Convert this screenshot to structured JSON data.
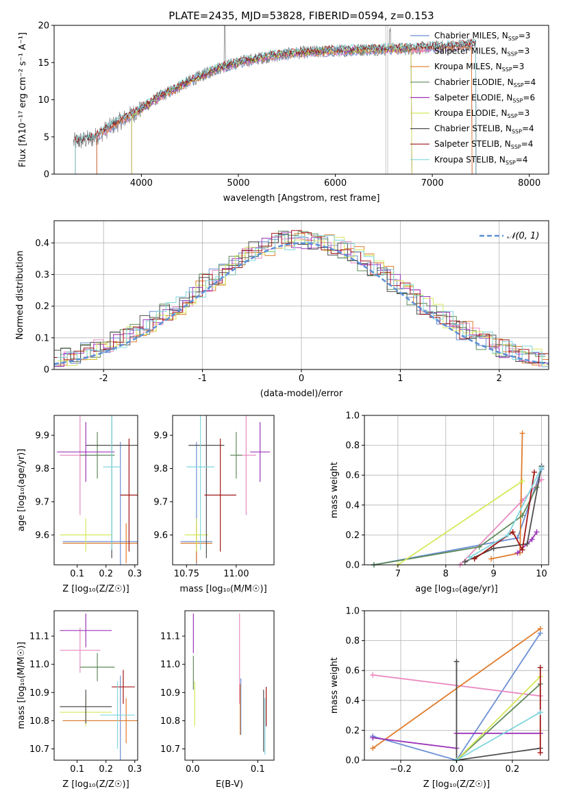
{
  "colors": {
    "Chabrier MILES": "#6b8fd6",
    "Salpeter MILES": "#e98bc2",
    "Kroupa MILES": "#e07b2a",
    "Chabrier ELODIE": "#5e8a5a",
    "Salpeter ELODIE": "#9b35b8",
    "Kroupa ELODIE": "#d6e85a",
    "Chabrier STELIB": "#4d4d4d",
    "Salpeter STELIB": "#a01515",
    "Kroupa STELIB": "#7fd6dc",
    "data": "#808080",
    "gaussian": "#5b8fd6"
  },
  "chart_data": [
    {
      "id": "spectrum",
      "type": "line",
      "title": "PLATE=2435, MJD=53828, FIBERID=0594, z=0.153",
      "xlabel": "wavelength [Angstrom, rest frame]",
      "ylabel": "Flux [fλ10⁻¹⁷ erg cm⁻² s⁻¹ A⁻¹]",
      "xlim": [
        3100,
        8200
      ],
      "ylim": [
        0,
        20
      ],
      "xticks": [
        4000,
        5000,
        6000,
        7000,
        8000
      ],
      "yticks": [
        0,
        5,
        10,
        15,
        20
      ],
      "legend": [
        {
          "name": "Chabrier MILES",
          "sub": "3"
        },
        {
          "name": "Salpeter MILES",
          "sub": "3"
        },
        {
          "name": "Kroupa MILES",
          "sub": "3"
        },
        {
          "name": "Chabrier ELODIE",
          "sub": "4"
        },
        {
          "name": "Salpeter ELODIE",
          "sub": "6"
        },
        {
          "name": "Kroupa ELODIE",
          "sub": "3"
        },
        {
          "name": "Chabrier STELIB",
          "sub": "4"
        },
        {
          "name": "Salpeter STELIB",
          "sub": "4"
        },
        {
          "name": "Kroupa STELIB",
          "sub": "4"
        }
      ],
      "legend_label_prefix": "N",
      "legend_label_subscript": "SSP",
      "continuum": [
        [
          3300,
          4.3
        ],
        [
          3500,
          4.8
        ],
        [
          3700,
          6.5
        ],
        [
          3900,
          8.0
        ],
        [
          4000,
          8.8
        ],
        [
          4200,
          10.5
        ],
        [
          4500,
          12.5
        ],
        [
          4800,
          14.3
        ],
        [
          5000,
          15.0
        ],
        [
          5300,
          15.8
        ],
        [
          5600,
          16.3
        ],
        [
          6000,
          16.6
        ],
        [
          6400,
          16.8
        ],
        [
          6800,
          16.9
        ],
        [
          7200,
          17.2
        ],
        [
          7450,
          17.5
        ]
      ],
      "model_ranges": [
        {
          "name": "Chabrier MILES",
          "x": [
            3540,
            7410
          ]
        },
        {
          "name": "Salpeter MILES",
          "x": [
            3540,
            7410
          ]
        },
        {
          "name": "Kroupa MILES",
          "x": [
            3540,
            7410
          ]
        },
        {
          "name": "Chabrier ELODIE",
          "x": [
            3900,
            6790
          ]
        },
        {
          "name": "Salpeter ELODIE",
          "x": [
            3900,
            6790
          ]
        },
        {
          "name": "Kroupa ELODIE",
          "x": [
            3900,
            6790
          ]
        },
        {
          "name": "Chabrier STELIB",
          "x": [
            3320,
            8000
          ]
        },
        {
          "name": "Salpeter STELIB",
          "x": [
            3320,
            8000
          ]
        },
        {
          "name": "Kroupa STELIB",
          "x": [
            3320,
            8000
          ]
        }
      ]
    },
    {
      "id": "residuals",
      "type": "histogram",
      "xlabel": "(data-model)/error",
      "ylabel": "Normed distribution",
      "xlim": [
        -2.5,
        2.5
      ],
      "ylim": [
        0,
        0.47
      ],
      "xticks": [
        -2,
        -1,
        0,
        1,
        2
      ],
      "yticks": [
        0.0,
        0.1,
        0.2,
        0.3,
        0.4
      ],
      "bin_width": 0.1,
      "legend": "𝒩(0, 1)",
      "grid": true
    },
    {
      "id": "age_vs_Z",
      "type": "scatter_errorbar",
      "xlabel": "Z [log₁₀(Z/Z☉)]",
      "ylabel": "age  [log₁₀(age/yr)]",
      "xlim": [
        0.02,
        0.31
      ],
      "ylim": [
        9.51,
        9.96
      ],
      "xticks": [
        "0.1",
        "0.2",
        "0.3"
      ],
      "yticks": [
        "9.6",
        "9.7",
        "9.8",
        "9.9"
      ],
      "points": [
        {
          "name": "Chabrier MILES",
          "x": 0.25,
          "y": 9.58,
          "xerr": 0.2,
          "yerr": 0.3
        },
        {
          "name": "Salpeter MILES",
          "x": 0.11,
          "y": 9.84,
          "xerr": 0.07,
          "yerr": 0.18
        },
        {
          "name": "Kroupa MILES",
          "x": 0.27,
          "y": 9.575,
          "xerr": 0.22,
          "yerr": 0.06
        },
        {
          "name": "Chabrier ELODIE",
          "x": 0.17,
          "y": 9.84,
          "xerr": 0.06,
          "yerr": 0.07
        },
        {
          "name": "Salpeter ELODIE",
          "x": 0.13,
          "y": 9.85,
          "xerr": 0.1,
          "yerr": 0.09
        },
        {
          "name": "Kroupa ELODIE",
          "x": 0.13,
          "y": 9.6,
          "xerr": 0.09,
          "yerr": 0.05
        },
        {
          "name": "Chabrier STELIB",
          "x": 0.22,
          "y": 9.87,
          "xerr": 0.09,
          "yerr": 0.34
        },
        {
          "name": "Salpeter STELIB",
          "x": 0.28,
          "y": 9.72,
          "xerr": 0.03,
          "yerr": 0.17
        },
        {
          "name": "Kroupa STELIB",
          "x": 0.22,
          "y": 9.805,
          "xerr": 0.03,
          "yerr": 0.25
        }
      ]
    },
    {
      "id": "age_vs_mass",
      "type": "scatter_errorbar",
      "xlabel": "mass [log₁₀(M/M☉)]",
      "xlim": [
        10.68,
        11.19
      ],
      "ylim": [
        9.51,
        9.96
      ],
      "xticks": [
        "10.75",
        "11.00"
      ],
      "yticks": [
        "9.6",
        "9.7",
        "9.8",
        "9.9"
      ],
      "points": [
        {
          "name": "Chabrier MILES",
          "x": 10.8,
          "y": 9.58,
          "xerr": 0.08,
          "yerr": 0.3
        },
        {
          "name": "Salpeter MILES",
          "x": 11.05,
          "y": 9.84,
          "xerr": 0.05,
          "yerr": 0.18
        },
        {
          "name": "Kroupa MILES",
          "x": 10.8,
          "y": 9.575,
          "xerr": 0.08,
          "yerr": 0.06
        },
        {
          "name": "Chabrier ELODIE",
          "x": 11.0,
          "y": 9.84,
          "xerr": 0.03,
          "yerr": 0.07
        },
        {
          "name": "Salpeter ELODIE",
          "x": 11.12,
          "y": 9.85,
          "xerr": 0.05,
          "yerr": 0.09
        },
        {
          "name": "Kroupa ELODIE",
          "x": 10.8,
          "y": 9.6,
          "xerr": 0.06,
          "yerr": 0.05
        },
        {
          "name": "Chabrier STELIB",
          "x": 10.85,
          "y": 9.87,
          "xerr": 0.09,
          "yerr": 0.34
        },
        {
          "name": "Salpeter STELIB",
          "x": 10.92,
          "y": 9.72,
          "xerr": 0.08,
          "yerr": 0.17
        },
        {
          "name": "Kroupa STELIB",
          "x": 10.82,
          "y": 9.805,
          "xerr": 0.07,
          "yerr": 0.25
        }
      ]
    },
    {
      "id": "massweight_vs_age",
      "type": "line",
      "xlabel": "age  [log₁₀(age/yr)]",
      "ylabel": "mass weight",
      "xlim": [
        6.3,
        10.15
      ],
      "ylim": [
        0,
        1
      ],
      "xticks": [
        "7",
        "8",
        "9",
        "10"
      ],
      "yticks": [
        "0.0",
        "0.2",
        "0.4",
        "0.6",
        "0.8",
        "1.0"
      ],
      "grid": true,
      "series": [
        {
          "name": "Chabrier MILES",
          "points": [
            [
              6.5,
              0
            ],
            [
              9.5,
              0.18
            ],
            [
              10,
              0.64
            ]
          ]
        },
        {
          "name": "Salpeter MILES",
          "points": [
            [
              8.3,
              0
            ],
            [
              9.6,
              0.43
            ],
            [
              10,
              0.57
            ]
          ]
        },
        {
          "name": "Kroupa MILES",
          "points": [
            [
              8.95,
              0.04
            ],
            [
              9.55,
              0.08
            ],
            [
              9.6,
              0.88
            ]
          ]
        },
        {
          "name": "Chabrier ELODIE",
          "points": [
            [
              6.5,
              0
            ],
            [
              8.7,
              0.12
            ],
            [
              9.6,
              0.33
            ],
            [
              9.9,
              0.52
            ]
          ]
        },
        {
          "name": "Salpeter ELODIE",
          "points": [
            [
              9.5,
              0.08
            ],
            [
              9.8,
              0.17
            ],
            [
              9.9,
              0.22
            ]
          ]
        },
        {
          "name": "Kroupa ELODIE",
          "points": [
            [
              7.0,
              0
            ],
            [
              9.6,
              0.56
            ]
          ]
        },
        {
          "name": "Chabrier STELIB",
          "points": [
            [
              8.4,
              0.02
            ],
            [
              9.0,
              0.11
            ],
            [
              9.7,
              0.14
            ],
            [
              10,
              0.66
            ]
          ]
        },
        {
          "name": "Salpeter STELIB",
          "points": [
            [
              8.6,
              0.04
            ],
            [
              9.4,
              0.22
            ],
            [
              9.6,
              0.1
            ],
            [
              9.85,
              0.62
            ]
          ]
        },
        {
          "name": "Kroupa STELIB",
          "points": [
            [
              8.5,
              0.05
            ],
            [
              9.3,
              0.2
            ],
            [
              10,
              0.65
            ]
          ]
        }
      ]
    },
    {
      "id": "mass_vs_Z",
      "type": "scatter_errorbar",
      "xlabel": "Z [log₁₀(Z/Z☉)]",
      "ylabel": "mass [log₁₀(M/M☉)]",
      "xlim": [
        0.02,
        0.31
      ],
      "ylim": [
        10.66,
        11.19
      ],
      "xticks": [
        "0.1",
        "0.2",
        "0.3"
      ],
      "yticks": [
        "10.7",
        "10.8",
        "10.9",
        "11.0",
        "11.1"
      ],
      "points": [
        {
          "name": "Chabrier MILES",
          "x": 0.25,
          "y": 10.8,
          "xerr": 0.2,
          "yerr": 0.16
        },
        {
          "name": "Salpeter MILES",
          "x": 0.11,
          "y": 11.05,
          "xerr": 0.07,
          "yerr": 0.08
        },
        {
          "name": "Kroupa MILES",
          "x": 0.27,
          "y": 10.8,
          "xerr": 0.22,
          "yerr": 0.08
        },
        {
          "name": "Chabrier ELODIE",
          "x": 0.17,
          "y": 10.99,
          "xerr": 0.06,
          "yerr": 0.05
        },
        {
          "name": "Salpeter ELODIE",
          "x": 0.13,
          "y": 11.12,
          "xerr": 0.09,
          "yerr": 0.06
        },
        {
          "name": "Kroupa ELODIE",
          "x": 0.13,
          "y": 10.83,
          "xerr": 0.09,
          "yerr": 0.05
        },
        {
          "name": "Chabrier STELIB",
          "x": 0.13,
          "y": 10.85,
          "xerr": 0.09,
          "yerr": 0.06
        },
        {
          "name": "Salpeter STELIB",
          "x": 0.26,
          "y": 10.92,
          "xerr": 0.04,
          "yerr": 0.06
        },
        {
          "name": "Kroupa STELIB",
          "x": 0.24,
          "y": 10.82,
          "xerr": 0.06,
          "yerr": 0.12
        }
      ]
    },
    {
      "id": "mass_vs_ebv",
      "type": "scatter_errorbar",
      "xlabel": "E(B-V)",
      "xlim": [
        -0.012,
        0.125
      ],
      "ylim": [
        10.66,
        11.19
      ],
      "xticks": [
        "0.0",
        "0.1"
      ],
      "yticks": [
        "10.7",
        "10.8",
        "10.9",
        "11.0",
        "11.1"
      ],
      "points": [
        {
          "name": "Chabrier MILES",
          "x": 0.074,
          "y": 10.85,
          "yerr": 0.1
        },
        {
          "name": "Salpeter MILES",
          "x": 0.072,
          "y": 11.02,
          "yerr": 0.16
        },
        {
          "name": "Kroupa MILES",
          "x": 0.073,
          "y": 10.84,
          "yerr": 0.09
        },
        {
          "name": "Chabrier ELODIE",
          "x": 0.001,
          "y": 10.97,
          "yerr": 0.06
        },
        {
          "name": "Salpeter ELODIE",
          "x": 0.001,
          "y": 11.11,
          "yerr": 0.07
        },
        {
          "name": "Kroupa ELODIE",
          "x": 0.003,
          "y": 10.86,
          "yerr": 0.08
        },
        {
          "name": "Chabrier STELIB",
          "x": 0.109,
          "y": 10.8,
          "yerr": 0.11
        },
        {
          "name": "Salpeter STELIB",
          "x": 0.113,
          "y": 10.85,
          "yerr": 0.07
        },
        {
          "name": "Kroupa STELIB",
          "x": 0.111,
          "y": 10.78,
          "yerr": 0.1
        }
      ]
    },
    {
      "id": "massweight_vs_Z",
      "type": "line",
      "xlabel": "Z [log₁₀(Z/Z☉)]",
      "ylabel": "mass weight",
      "xlim": [
        -0.33,
        0.33
      ],
      "ylim": [
        0,
        1
      ],
      "xticks": [
        "−0.2",
        "0.0",
        "0.2"
      ],
      "yticks": [
        "0.0",
        "0.2",
        "0.4",
        "0.6",
        "0.8",
        "1.0"
      ],
      "grid": true,
      "series": [
        {
          "name": "Chabrier MILES",
          "points": [
            [
              -0.3,
              0.16
            ],
            [
              0,
              0
            ],
            [
              0.3,
              0.85
            ]
          ]
        },
        {
          "name": "Salpeter MILES",
          "points": [
            [
              -0.3,
              0.57
            ],
            [
              0.3,
              0.43
            ]
          ]
        },
        {
          "name": "Kroupa MILES",
          "points": [
            [
              -0.3,
              0.08
            ],
            [
              0.3,
              0.88
            ]
          ]
        },
        {
          "name": "Chabrier ELODIE",
          "points": [
            [
              0,
              0
            ],
            [
              0.3,
              0.51
            ]
          ]
        },
        {
          "name": "Salpeter ELODIE",
          "points": [
            [
              -0.3,
              0.15
            ],
            [
              0,
              0.08
            ],
            [
              0,
              0.18
            ],
            [
              0.3,
              0.18
            ]
          ]
        },
        {
          "name": "Kroupa ELODIE",
          "points": [
            [
              0,
              0
            ],
            [
              0.3,
              0.56
            ]
          ]
        },
        {
          "name": "Chabrier STELIB",
          "points": [
            [
              0,
              0
            ],
            [
              0,
              0.66
            ],
            [
              0,
              0
            ],
            [
              0.3,
              0.08
            ]
          ]
        },
        {
          "name": "Salpeter STELIB",
          "points": [
            [
              0.3,
              0.05
            ],
            [
              0.3,
              0.62
            ]
          ]
        },
        {
          "name": "Kroupa STELIB",
          "points": [
            [
              0,
              0
            ],
            [
              0.3,
              0.32
            ]
          ]
        }
      ]
    }
  ]
}
